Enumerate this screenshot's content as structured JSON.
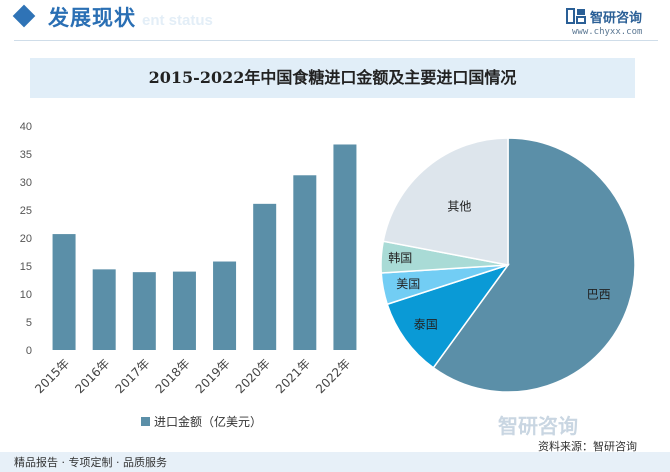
{
  "header": {
    "title": "发展现状",
    "watermark": "ent status"
  },
  "brand": {
    "name": "智研咨询",
    "url": "www.chyxx.com",
    "watermark_name": "智研咨询"
  },
  "footer": {
    "left": "精品报告 · 专项定制 · 品质服务",
    "source": "资料来源：智研咨询"
  },
  "colors": {
    "bar": "#5b8fa8",
    "brand_blue": "#2a6fb4"
  },
  "chart_data": [
    {
      "type": "bar",
      "title": "2015-2022年中国食糖进口金额及主要进口国情况",
      "categories": [
        "2015年",
        "2016年",
        "2017年",
        "2018年",
        "2019年",
        "2020年",
        "2021年",
        "2022年"
      ],
      "series": [
        {
          "name": "进口金额（亿美元）",
          "values": [
            20.7,
            14.4,
            13.9,
            14.0,
            15.8,
            26.1,
            31.2,
            36.7
          ]
        }
      ],
      "y_ticks": [
        0,
        5,
        10,
        15,
        20,
        25,
        30,
        35,
        40
      ],
      "ylim": [
        0,
        40
      ],
      "grid": false,
      "legend": "bottom"
    },
    {
      "type": "pie",
      "labels": [
        "巴西",
        "泰国",
        "美国",
        "韩国",
        "其他"
      ],
      "values": [
        60,
        10,
        4,
        4,
        22
      ],
      "colors": [
        "#5b8fa8",
        "#0a9ad6",
        "#72cdf4",
        "#a9dbd6",
        "#dde5ec"
      ]
    }
  ]
}
